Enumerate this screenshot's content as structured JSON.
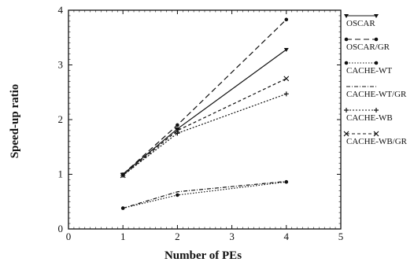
{
  "chart_data": {
    "type": "line",
    "title": "",
    "xlabel": "Number of PEs",
    "ylabel": "Speed-up ratio",
    "xlim": [
      0,
      5
    ],
    "ylim": [
      0,
      4
    ],
    "x_ticks": [
      0,
      1,
      2,
      3,
      4,
      5
    ],
    "y_ticks": [
      0,
      1,
      2,
      3,
      4
    ],
    "grid": false,
    "legend_position": "right",
    "x": [
      1,
      2,
      4
    ],
    "series": [
      {
        "name": "OSCAR",
        "values": [
          1.0,
          1.83,
          3.28
        ],
        "dash": "",
        "marker": "triangle",
        "color": "#111111"
      },
      {
        "name": "OSCAR/GR",
        "values": [
          1.0,
          1.9,
          3.83
        ],
        "dash": "7,4",
        "marker": "circle",
        "color": "#111111"
      },
      {
        "name": "CACHE-WT",
        "values": [
          0.38,
          0.62,
          0.86
        ],
        "dash": "1.5,2",
        "marker": "circle",
        "color": "#111111"
      },
      {
        "name": "CACHE-WT/GR",
        "values": [
          0.38,
          0.68,
          0.87
        ],
        "dash": "5,2,1,2",
        "marker": "none",
        "color": "#111111"
      },
      {
        "name": "CACHE-WB",
        "values": [
          0.98,
          1.75,
          2.47
        ],
        "dash": "2,2",
        "marker": "plus",
        "color": "#111111"
      },
      {
        "name": "CACHE-WB/GR",
        "values": [
          0.98,
          1.8,
          2.75
        ],
        "dash": "4,3",
        "marker": "cross",
        "color": "#111111"
      }
    ]
  }
}
